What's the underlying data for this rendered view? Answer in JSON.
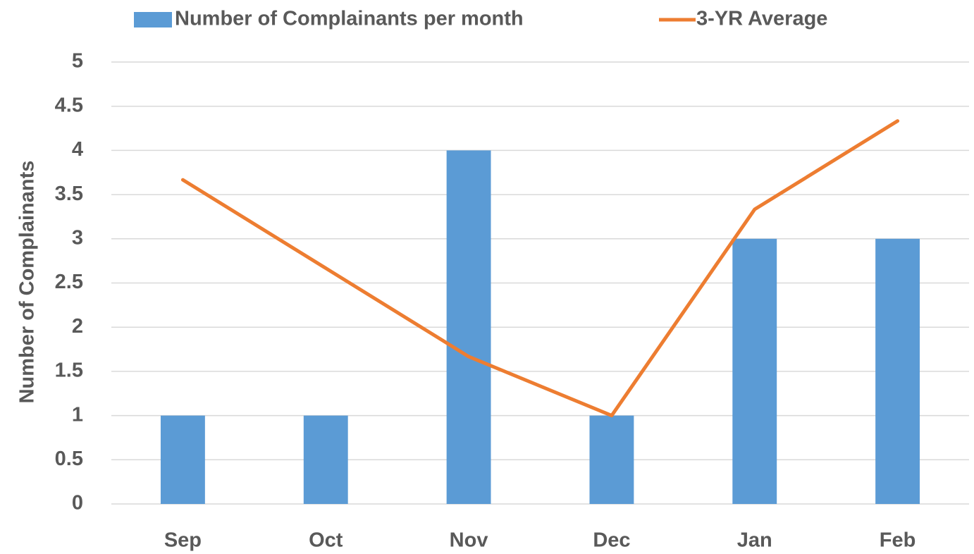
{
  "chart_data": {
    "type": "combo",
    "y_label": "Number of Complainants",
    "categories": [
      "Sep",
      "Oct",
      "Nov",
      "Dec",
      "Jan",
      "Feb"
    ],
    "series": [
      {
        "name": "Number of Complainants per month",
        "type": "bar",
        "color": "#5b9bd5",
        "values": [
          1,
          1,
          4,
          1,
          3,
          3
        ]
      },
      {
        "name": "3-YR Average",
        "type": "line",
        "color": "#ed7d31",
        "values": [
          3.667,
          2.667,
          1.667,
          1,
          3.333,
          4.333
        ]
      }
    ],
    "ylim": [
      0,
      5
    ],
    "yticks": [
      0,
      0.5,
      1,
      1.5,
      2,
      2.5,
      3,
      3.5,
      4,
      4.5,
      5
    ],
    "grid": true,
    "legend": "top"
  }
}
